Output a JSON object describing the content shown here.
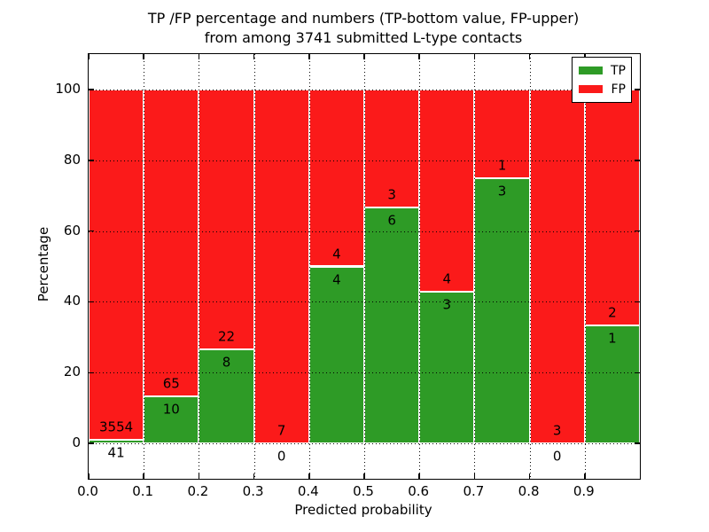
{
  "figure": {
    "title_line1": "TP /FP percentage and numbers (TP-bottom value, FP-upper)",
    "title_line2": "from among 3741 submitted L-type contacts"
  },
  "chart_data": {
    "type": "bar",
    "stacked": true,
    "title": "TP /FP percentage and numbers (TP-bottom value, FP-upper) from among 3741 submitted L-type contacts",
    "xlabel": "Predicted probability",
    "ylabel": "Percentage",
    "xlim": [
      0.0,
      1.0
    ],
    "ylim": [
      -10,
      110
    ],
    "grid": true,
    "total_contacts": 3741,
    "xticks": [
      {
        "value": 0.0,
        "label": "0.0"
      },
      {
        "value": 0.1,
        "label": "0.1"
      },
      {
        "value": 0.2,
        "label": "0.2"
      },
      {
        "value": 0.3,
        "label": "0.3"
      },
      {
        "value": 0.4,
        "label": "0.4"
      },
      {
        "value": 0.5,
        "label": "0.5"
      },
      {
        "value": 0.6,
        "label": "0.6"
      },
      {
        "value": 0.7,
        "label": "0.7"
      },
      {
        "value": 0.8,
        "label": "0.8"
      },
      {
        "value": 0.9,
        "label": "0.9"
      }
    ],
    "yticks": [
      {
        "value": 0,
        "label": "0"
      },
      {
        "value": 20,
        "label": "20"
      },
      {
        "value": 40,
        "label": "40"
      },
      {
        "value": 60,
        "label": "60"
      },
      {
        "value": 80,
        "label": "80"
      },
      {
        "value": 100,
        "label": "100"
      }
    ],
    "bins": [
      {
        "x0": 0.0,
        "x1": 0.1,
        "tp": 41,
        "fp": 3554
      },
      {
        "x0": 0.1,
        "x1": 0.2,
        "tp": 10,
        "fp": 65
      },
      {
        "x0": 0.2,
        "x1": 0.3,
        "tp": 8,
        "fp": 22
      },
      {
        "x0": 0.3,
        "x1": 0.4,
        "tp": 0,
        "fp": 7
      },
      {
        "x0": 0.4,
        "x1": 0.5,
        "tp": 4,
        "fp": 4
      },
      {
        "x0": 0.5,
        "x1": 0.6,
        "tp": 6,
        "fp": 3
      },
      {
        "x0": 0.6,
        "x1": 0.7,
        "tp": 3,
        "fp": 4
      },
      {
        "x0": 0.7,
        "x1": 0.8,
        "tp": 3,
        "fp": 1
      },
      {
        "x0": 0.8,
        "x1": 0.9,
        "tp": 0,
        "fp": 3
      },
      {
        "x0": 0.9,
        "x1": 1.0,
        "tp": 1,
        "fp": 2
      }
    ],
    "series": [
      {
        "name": "TP",
        "color": "#2E9B26",
        "position": "bottom"
      },
      {
        "name": "FP",
        "color": "#FB1A1A",
        "position": "top"
      }
    ],
    "legend": {
      "position": "upper right",
      "entries": [
        {
          "label": "TP",
          "color": "#2E9B26"
        },
        {
          "label": "FP",
          "color": "#FB1A1A"
        }
      ]
    }
  }
}
